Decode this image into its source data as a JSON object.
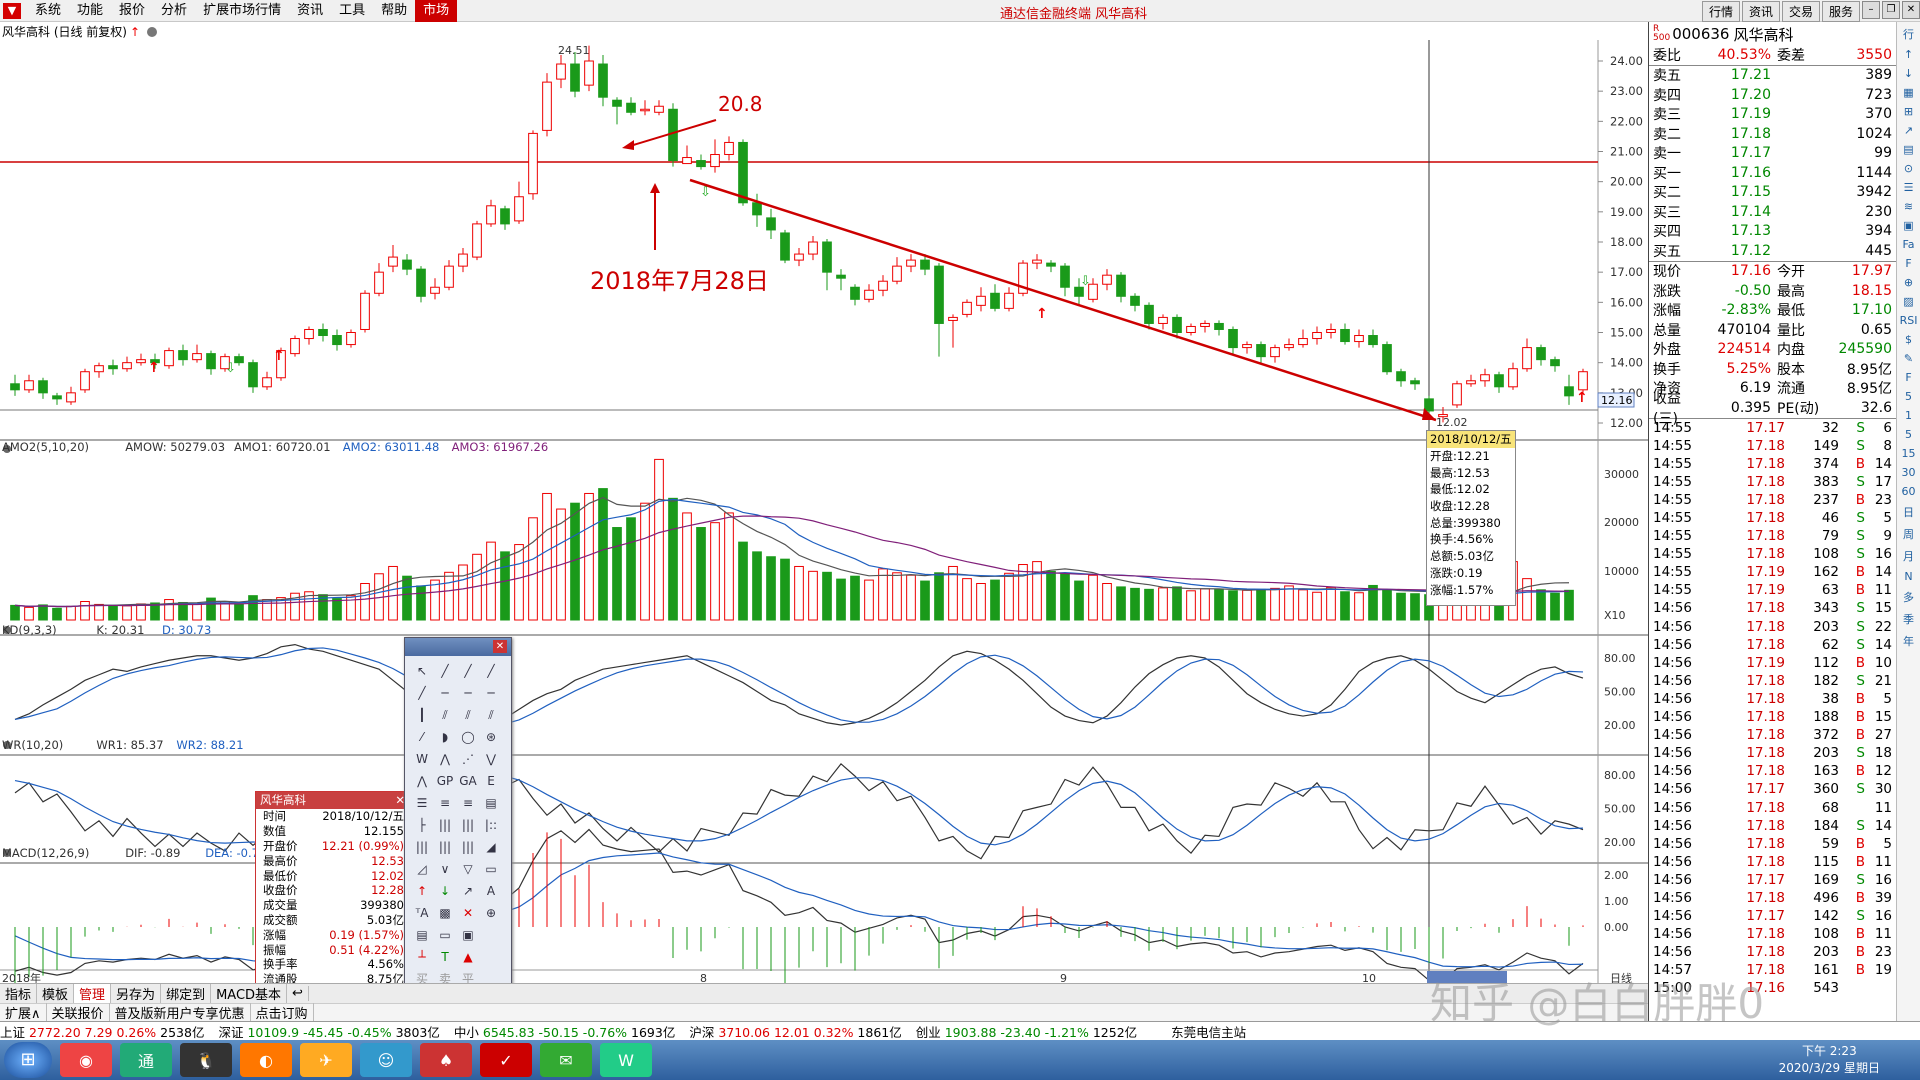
{
  "menu": {
    "items": [
      "系统",
      "功能",
      "报价",
      "分析",
      "扩展市场行情",
      "资讯",
      "工具",
      "帮助"
    ],
    "market": "市场",
    "app_title": "通达信金融终端 风华高科",
    "right_btns": [
      "行情",
      "资讯",
      "交易",
      "服务"
    ]
  },
  "chart": {
    "title": "风华高科 (日线 前复权)",
    "high_label": "24.51",
    "low_label": "12.02",
    "last_price": "12.16",
    "price_axis": [
      "24.00",
      "23.00",
      "22.00",
      "21.00",
      "20.00",
      "19.00",
      "18.00",
      "17.00",
      "16.00",
      "15.00",
      "14.00",
      "13.00",
      "12.00"
    ],
    "annot1": "20.8",
    "annot2": "2018年7月28日",
    "vol_header": {
      "name": "AMO2(5,10,20)",
      "amow": "AMOW: 50279.03",
      "amo1": "AMO1: 60720.01",
      "amo2": "AMO2: 63011.48",
      "amo3": "AMO3: 61967.26"
    },
    "vol_axis": [
      "30000",
      "20000",
      "10000",
      "X10"
    ],
    "kd_header": {
      "name": "KD(9,3,3)",
      "k": "K: 20.31",
      "d": "D: 30.73"
    },
    "kd_axis": [
      "80.00",
      "50.00",
      "20.00"
    ],
    "wr_header": {
      "name": "WR(10,20)",
      "wr1": "WR1: 85.37",
      "wr2": "WR2: 88.21"
    },
    "wr_axis": [
      "80.00",
      "50.00",
      "20.00"
    ],
    "macd_header": {
      "name": "MACD(12,26,9)",
      "dif": "DIF: -0.89",
      "dea": "DEA: -0.73",
      "macd": "MACD"
    },
    "macd_axis": [
      "2.00",
      "1.00",
      "0.00"
    ],
    "time_axis": [
      "2018年",
      "8",
      "9",
      "10",
      "2018/10/12/五",
      "日线"
    ]
  },
  "tooltip": {
    "date": "2018/10/12/五",
    "rows": [
      "开盘:12.21",
      "最高:12.53",
      "最低:12.02",
      "收盘:12.28",
      "总量:399380",
      "换手:4.56%",
      "总额:5.03亿",
      "涨跌:0.19",
      "涨幅:1.57%"
    ]
  },
  "infobox": {
    "title": "风华高科",
    "rows": [
      [
        "时间",
        "2018/10/12/五"
      ],
      [
        "数值",
        "12.155"
      ],
      [
        "开盘价",
        "12.21 (0.99%)"
      ],
      [
        "最高价",
        "12.53"
      ],
      [
        "最低价",
        "12.02"
      ],
      [
        "收盘价",
        "12.28"
      ],
      [
        "成交量",
        "399380"
      ],
      [
        "成交额",
        "5.03亿"
      ],
      [
        "涨幅",
        "0.19 (1.57%)"
      ],
      [
        "振幅",
        "0.51 (4.22%)"
      ],
      [
        "换手率",
        "4.56%"
      ],
      [
        "流通股",
        "8.75亿"
      ]
    ]
  },
  "quote": {
    "code": "000636",
    "name": "风华高科",
    "weibi_label": "委比",
    "weibi": "40.53%",
    "weicha_label": "委差",
    "weicha": "3550",
    "asks": [
      [
        "卖五",
        "17.21",
        "389"
      ],
      [
        "卖四",
        "17.20",
        "723"
      ],
      [
        "卖三",
        "17.19",
        "370"
      ],
      [
        "卖二",
        "17.18",
        "1024"
      ],
      [
        "卖一",
        "17.17",
        "99"
      ]
    ],
    "bids": [
      [
        "买一",
        "17.16",
        "1144"
      ],
      [
        "买二",
        "17.15",
        "3942"
      ],
      [
        "买三",
        "17.14",
        "230"
      ],
      [
        "买四",
        "17.13",
        "394"
      ],
      [
        "买五",
        "17.12",
        "445"
      ]
    ],
    "stats": [
      [
        "现价",
        "17.16",
        "今开",
        "17.97"
      ],
      [
        "涨跌",
        "-0.50",
        "最高",
        "18.15"
      ],
      [
        "涨幅",
        "-2.83%",
        "最低",
        "17.10"
      ],
      [
        "总量",
        "470104",
        "量比",
        "0.65"
      ],
      [
        "外盘",
        "224514",
        "内盘",
        "245590"
      ]
    ],
    "stats2": [
      [
        "换手",
        "5.25%",
        "股本",
        "8.95亿"
      ],
      [
        "净资",
        "6.19",
        "流通",
        "8.95亿"
      ],
      [
        "收益(三)",
        "0.395",
        "PE(动)",
        "32.6"
      ]
    ],
    "ticks": [
      [
        "14:55",
        "17.17",
        "32",
        "S",
        "6"
      ],
      [
        "14:55",
        "17.18",
        "149",
        "S",
        "8"
      ],
      [
        "14:55",
        "17.18",
        "374",
        "B",
        "14"
      ],
      [
        "14:55",
        "17.18",
        "383",
        "S",
        "17"
      ],
      [
        "14:55",
        "17.18",
        "237",
        "B",
        "23"
      ],
      [
        "14:55",
        "17.18",
        "46",
        "S",
        "5"
      ],
      [
        "14:55",
        "17.18",
        "79",
        "S",
        "9"
      ],
      [
        "14:55",
        "17.18",
        "108",
        "S",
        "16"
      ],
      [
        "14:55",
        "17.19",
        "162",
        "B",
        "14"
      ],
      [
        "14:55",
        "17.19",
        "63",
        "B",
        "11"
      ],
      [
        "14:56",
        "17.18",
        "343",
        "S",
        "15"
      ],
      [
        "14:56",
        "17.18",
        "203",
        "S",
        "22"
      ],
      [
        "14:56",
        "17.18",
        "62",
        "S",
        "14"
      ],
      [
        "14:56",
        "17.19",
        "112",
        "B",
        "10"
      ],
      [
        "14:56",
        "17.18",
        "182",
        "S",
        "21"
      ],
      [
        "14:56",
        "17.18",
        "38",
        "B",
        "5"
      ],
      [
        "14:56",
        "17.18",
        "188",
        "B",
        "15"
      ],
      [
        "14:56",
        "17.18",
        "372",
        "B",
        "27"
      ],
      [
        "14:56",
        "17.18",
        "203",
        "S",
        "18"
      ],
      [
        "14:56",
        "17.18",
        "163",
        "B",
        "12"
      ],
      [
        "14:56",
        "17.17",
        "360",
        "S",
        "30"
      ],
      [
        "14:56",
        "17.18",
        "68",
        "",
        "11"
      ],
      [
        "14:56",
        "17.18",
        "184",
        "S",
        "14"
      ],
      [
        "14:56",
        "17.18",
        "59",
        "B",
        "5"
      ],
      [
        "14:56",
        "17.18",
        "115",
        "B",
        "11"
      ],
      [
        "14:56",
        "17.17",
        "169",
        "S",
        "16"
      ],
      [
        "14:56",
        "17.18",
        "496",
        "B",
        "39"
      ],
      [
        "14:56",
        "17.17",
        "142",
        "S",
        "16"
      ],
      [
        "14:56",
        "17.18",
        "108",
        "B",
        "11"
      ],
      [
        "14:56",
        "17.18",
        "203",
        "B",
        "23"
      ],
      [
        "14:57",
        "17.18",
        "161",
        "B",
        "19"
      ],
      [
        "15:00",
        "17.16",
        "543",
        "",
        ""
      ]
    ]
  },
  "right_tools": [
    "行",
    "↑",
    "↓",
    "▦",
    "⊞",
    "↗",
    "▤",
    "⊙",
    "☰",
    "≋",
    "▣",
    "Fa",
    "F",
    "⊕",
    "▨",
    "RSI",
    "$",
    "✎",
    "F",
    "5",
    "1",
    "5",
    "15",
    "30",
    "60",
    "日",
    "周",
    "月",
    "N",
    "多",
    "季",
    "年"
  ],
  "tabs": [
    "指标",
    "模板",
    "管理",
    "另存为",
    "绑定到",
    "MACD基本",
    "↩"
  ],
  "tabs2": [
    "扩展∧",
    "关联报价",
    "普及版新用户专享优惠",
    "点击订购"
  ],
  "indexbar": [
    [
      "上证",
      "2772.20",
      "7.29",
      "0.26%",
      "2538亿"
    ],
    [
      "深证",
      "10109.9",
      "-45.45",
      "-0.45%",
      "3803亿"
    ],
    [
      "中小",
      "6545.83",
      "-50.15",
      "-0.76%",
      "1693亿"
    ],
    [
      "沪深",
      "3710.06",
      "12.01",
      "0.32%",
      "1861亿"
    ],
    [
      "创业",
      "1903.88",
      "-23.40",
      "-1.21%",
      "1252亿"
    ]
  ],
  "indexbar_extra": "东莞电信主站",
  "taskbar": {
    "time": "下午 2:23",
    "date": "2020/3/29 星期日",
    "apps": [
      "◉",
      "通",
      "🐧",
      "◐",
      "✈",
      "☺",
      "♠",
      "✓",
      "✉",
      "W"
    ]
  },
  "watermark": "知乎 @白白胖胖0"
}
